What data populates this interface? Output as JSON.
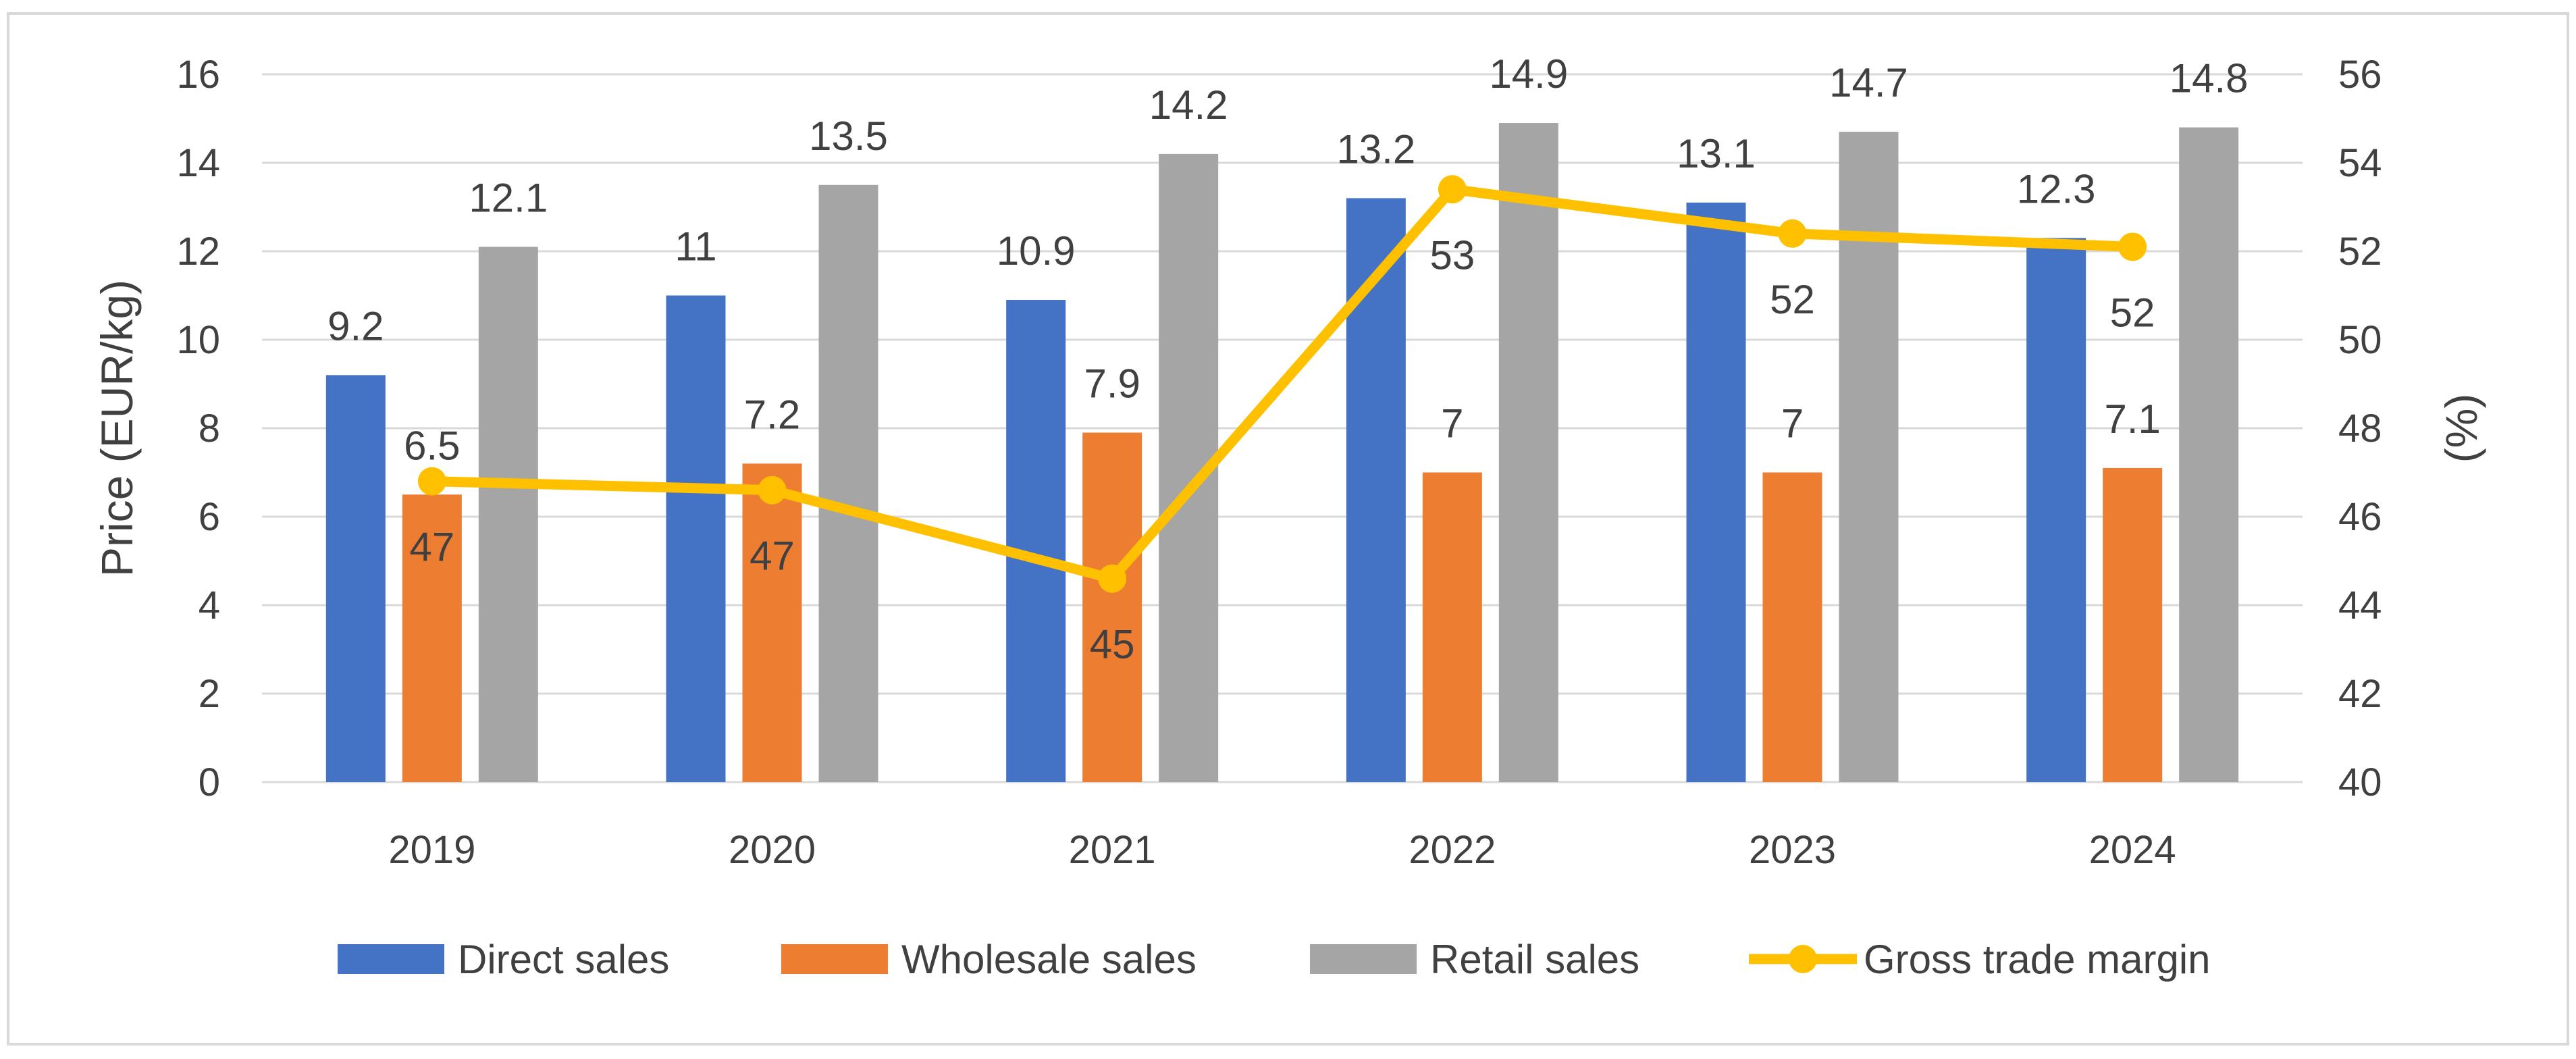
{
  "chart_data": {
    "type": "bar",
    "categories": [
      "2019",
      "2020",
      "2021",
      "2022",
      "2023",
      "2024"
    ],
    "series": [
      {
        "name": "Direct sales",
        "kind": "bar",
        "axis": "left",
        "color": "#4472C4",
        "values": [
          9.2,
          11,
          10.9,
          13.2,
          13.1,
          12.3
        ]
      },
      {
        "name": "Wholesale sales",
        "kind": "bar",
        "axis": "left",
        "color": "#ED7D31",
        "values": [
          6.5,
          7.2,
          7.9,
          7,
          7,
          7.1
        ]
      },
      {
        "name": "Retail sales",
        "kind": "bar",
        "axis": "left",
        "color": "#A5A5A5",
        "values": [
          12.1,
          13.5,
          14.2,
          14.9,
          14.7,
          14.8
        ]
      },
      {
        "name": "Gross trade margin",
        "kind": "line",
        "axis": "right",
        "color": "#FFC000",
        "values": [
          46.8,
          46.6,
          44.6,
          53.4,
          52.4,
          52.1
        ],
        "labels": [
          "47",
          "47",
          "45",
          "53",
          "52",
          "52"
        ]
      }
    ],
    "ylabel": "Price (EUR/kg)",
    "y2label": "(%)",
    "xlabel": "",
    "ylim": [
      0,
      16
    ],
    "yticks": [
      "0",
      "2",
      "4",
      "6",
      "8",
      "10",
      "12",
      "14",
      "16"
    ],
    "y2lim": [
      40,
      56
    ],
    "y2ticks": [
      "40",
      "42",
      "44",
      "46",
      "48",
      "50",
      "52",
      "54",
      "56"
    ],
    "grid": true,
    "legend": "bottom"
  }
}
